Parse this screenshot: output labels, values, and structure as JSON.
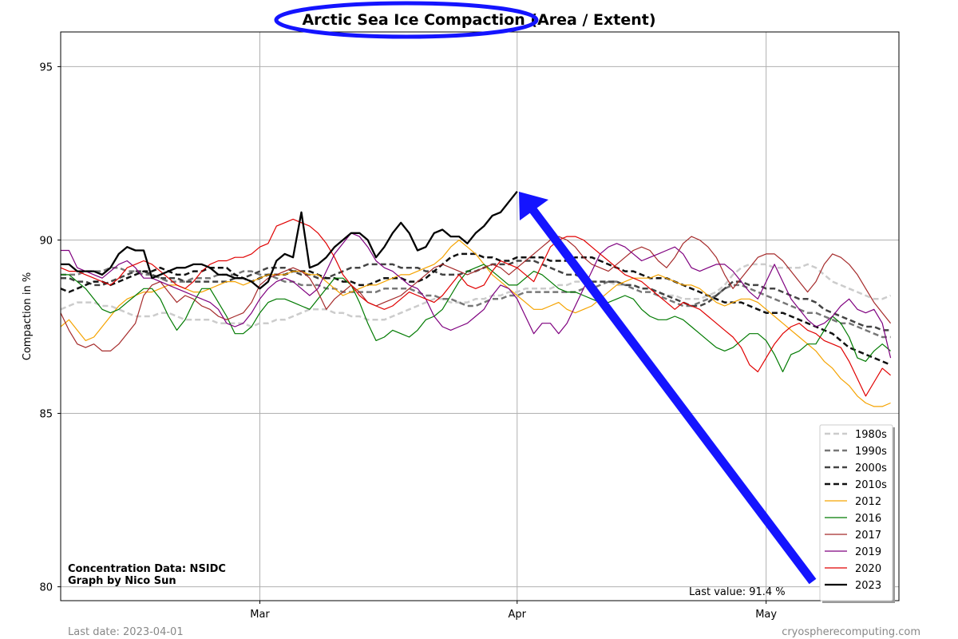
{
  "chart_data": {
    "type": "line",
    "title": "Arctic Sea Ice Compaction (Area / Extent)",
    "ylabel": "Compaction in %",
    "xlabel": "",
    "ylim": [
      79.6,
      96.0
    ],
    "yticks": [
      80,
      85,
      90,
      95
    ],
    "x_start_date": "2023-02-05",
    "x_end_date": "2023-05-17",
    "xticks": [
      {
        "label": "Mar",
        "date": "2023-03-01"
      },
      {
        "label": "Apr",
        "date": "2023-04-01"
      },
      {
        "label": "May",
        "date": "2023-05-01"
      }
    ],
    "grid": true,
    "legend_position": "lower-right",
    "series": [
      {
        "name": "1980s",
        "color": "#cccccc",
        "style": "dashed",
        "width": 2.5,
        "values": [
          88.0,
          88.1,
          88.2,
          88.2,
          88.2,
          88.1,
          88.1,
          88.0,
          87.9,
          87.8,
          87.8,
          87.8,
          87.9,
          87.9,
          87.8,
          87.7,
          87.7,
          87.7,
          87.7,
          87.6,
          87.6,
          87.6,
          87.6,
          87.5,
          87.6,
          87.6,
          87.7,
          87.7,
          87.8,
          87.9,
          88.0,
          88.0,
          88.0,
          87.9,
          87.9,
          87.8,
          87.8,
          87.7,
          87.7,
          87.7,
          87.8,
          87.9,
          88.0,
          88.1,
          88.2,
          88.3,
          88.3,
          88.2,
          88.2,
          88.2,
          88.3,
          88.3,
          88.4,
          88.4,
          88.5,
          88.5,
          88.6,
          88.6,
          88.6,
          88.6,
          88.7,
          88.7,
          88.8,
          88.8,
          88.8,
          88.8,
          88.8,
          88.7,
          88.7,
          88.7,
          88.6,
          88.6,
          88.5,
          88.4,
          88.4,
          88.3,
          88.3,
          88.3,
          88.4,
          88.5,
          88.7,
          89.0,
          89.2,
          89.3,
          89.3,
          89.3,
          89.2,
          89.2,
          89.2,
          89.2,
          89.3,
          89.2,
          89.0,
          88.8,
          88.7,
          88.6,
          88.5,
          88.4,
          88.3,
          88.3,
          88.4
        ]
      },
      {
        "name": "1990s",
        "color": "#777777",
        "style": "dashed",
        "width": 2.5,
        "values": [
          89.0,
          89.0,
          89.0,
          89.1,
          89.1,
          89.1,
          89.2,
          89.2,
          89.1,
          89.1,
          89.0,
          89.0,
          88.9,
          88.8,
          88.8,
          88.8,
          88.9,
          88.9,
          88.9,
          89.0,
          89.0,
          89.0,
          89.1,
          89.1,
          89.0,
          89.0,
          88.9,
          88.8,
          88.8,
          88.7,
          88.7,
          88.7,
          88.6,
          88.6,
          88.5,
          88.5,
          88.5,
          88.5,
          88.5,
          88.6,
          88.6,
          88.6,
          88.6,
          88.5,
          88.4,
          88.4,
          88.3,
          88.3,
          88.2,
          88.1,
          88.1,
          88.2,
          88.3,
          88.3,
          88.4,
          88.4,
          88.5,
          88.5,
          88.5,
          88.5,
          88.5,
          88.5,
          88.5,
          88.6,
          88.6,
          88.7,
          88.8,
          88.8,
          88.7,
          88.6,
          88.5,
          88.5,
          88.4,
          88.3,
          88.2,
          88.1,
          88.1,
          88.2,
          88.3,
          88.4,
          88.6,
          88.7,
          88.7,
          88.6,
          88.5,
          88.4,
          88.3,
          88.2,
          88.1,
          88.0,
          87.9,
          87.9,
          87.8,
          87.7,
          87.6,
          87.6,
          87.5,
          87.4,
          87.3,
          87.2,
          87.2
        ]
      },
      {
        "name": "2000s",
        "color": "#444444",
        "style": "dashed",
        "width": 2.5,
        "values": [
          88.9,
          88.9,
          88.8,
          88.8,
          88.7,
          88.7,
          88.8,
          88.9,
          89.0,
          89.1,
          89.1,
          89.0,
          88.9,
          88.9,
          88.9,
          88.8,
          88.8,
          88.8,
          88.8,
          88.8,
          88.8,
          88.9,
          88.9,
          89.0,
          89.1,
          89.2,
          89.2,
          89.2,
          89.1,
          89.0,
          89.0,
          88.9,
          88.9,
          89.0,
          89.1,
          89.2,
          89.2,
          89.3,
          89.3,
          89.3,
          89.3,
          89.2,
          89.2,
          89.2,
          89.1,
          89.1,
          89.0,
          89.0,
          89.0,
          89.1,
          89.1,
          89.2,
          89.3,
          89.3,
          89.3,
          89.4,
          89.4,
          89.4,
          89.3,
          89.2,
          89.1,
          89.0,
          89.0,
          88.9,
          88.8,
          88.8,
          88.8,
          88.8,
          88.7,
          88.7,
          88.6,
          88.6,
          88.5,
          88.4,
          88.3,
          88.2,
          88.1,
          88.1,
          88.2,
          88.4,
          88.6,
          88.8,
          88.8,
          88.7,
          88.7,
          88.6,
          88.6,
          88.5,
          88.4,
          88.3,
          88.3,
          88.2,
          88.0,
          87.9,
          87.8,
          87.7,
          87.6,
          87.5,
          87.5,
          87.4,
          87.4
        ]
      },
      {
        "name": "2010s",
        "color": "#111111",
        "style": "dashed",
        "width": 2.5,
        "values": [
          88.6,
          88.5,
          88.6,
          88.7,
          88.8,
          88.8,
          88.7,
          88.8,
          88.9,
          89.0,
          89.1,
          89.1,
          89.2,
          89.1,
          89.0,
          89.0,
          89.1,
          89.1,
          89.2,
          89.2,
          89.2,
          89.0,
          88.9,
          88.8,
          88.9,
          89.0,
          89.0,
          89.0,
          89.1,
          89.1,
          89.1,
          89.0,
          88.9,
          88.9,
          88.8,
          88.8,
          88.7,
          88.7,
          88.8,
          88.9,
          88.9,
          88.9,
          88.8,
          88.8,
          88.9,
          89.1,
          89.3,
          89.5,
          89.6,
          89.6,
          89.6,
          89.5,
          89.5,
          89.4,
          89.4,
          89.5,
          89.5,
          89.5,
          89.5,
          89.4,
          89.4,
          89.4,
          89.5,
          89.5,
          89.5,
          89.4,
          89.3,
          89.2,
          89.1,
          89.1,
          89.0,
          88.9,
          88.9,
          88.9,
          88.8,
          88.7,
          88.6,
          88.5,
          88.4,
          88.3,
          88.2,
          88.2,
          88.2,
          88.1,
          88.0,
          87.9,
          87.9,
          87.9,
          87.8,
          87.7,
          87.6,
          87.5,
          87.4,
          87.3,
          87.1,
          86.9,
          86.8,
          86.7,
          86.6,
          86.5,
          86.4
        ]
      },
      {
        "name": "2012",
        "color": "#f5a300",
        "style": "solid",
        "width": 1.2,
        "values": [
          87.5,
          87.7,
          87.4,
          87.1,
          87.2,
          87.5,
          87.8,
          88.1,
          88.3,
          88.4,
          88.5,
          88.5,
          88.6,
          88.7,
          88.7,
          88.6,
          88.5,
          88.5,
          88.6,
          88.7,
          88.8,
          88.8,
          88.7,
          88.8,
          88.9,
          89.0,
          89.0,
          89.0,
          89.1,
          89.1,
          89.0,
          89.0,
          88.8,
          88.6,
          88.4,
          88.5,
          88.6,
          88.7,
          88.7,
          88.8,
          88.9,
          89.0,
          89.0,
          89.1,
          89.2,
          89.3,
          89.5,
          89.8,
          90.0,
          89.8,
          89.6,
          89.3,
          89.0,
          88.8,
          88.6,
          88.4,
          88.2,
          88.0,
          88.0,
          88.1,
          88.2,
          88.0,
          87.9,
          88.0,
          88.1,
          88.3,
          88.5,
          88.7,
          88.8,
          88.9,
          88.9,
          88.9,
          89.0,
          88.9,
          88.8,
          88.7,
          88.7,
          88.6,
          88.4,
          88.2,
          88.1,
          88.2,
          88.3,
          88.3,
          88.2,
          88.0,
          87.8,
          87.6,
          87.4,
          87.2,
          87.0,
          86.8,
          86.5,
          86.3,
          86.0,
          85.8,
          85.5,
          85.3,
          85.2,
          85.2,
          85.3
        ]
      },
      {
        "name": "2016",
        "color": "#007a00",
        "style": "solid",
        "width": 1.2,
        "values": [
          89.0,
          89.0,
          88.8,
          88.6,
          88.3,
          88.0,
          87.9,
          88.0,
          88.2,
          88.4,
          88.6,
          88.6,
          88.3,
          87.8,
          87.4,
          87.7,
          88.2,
          88.6,
          88.6,
          88.2,
          87.8,
          87.3,
          87.3,
          87.5,
          87.9,
          88.2,
          88.3,
          88.3,
          88.2,
          88.1,
          88.0,
          88.3,
          88.6,
          88.9,
          88.9,
          88.7,
          88.2,
          87.6,
          87.1,
          87.2,
          87.4,
          87.3,
          87.2,
          87.4,
          87.7,
          87.8,
          88.0,
          88.4,
          88.8,
          89.1,
          89.2,
          89.3,
          89.1,
          88.9,
          88.7,
          88.7,
          88.9,
          89.1,
          89.0,
          88.8,
          88.6,
          88.5,
          88.5,
          88.4,
          88.3,
          88.2,
          88.2,
          88.3,
          88.4,
          88.3,
          88.0,
          87.8,
          87.7,
          87.7,
          87.8,
          87.7,
          87.5,
          87.3,
          87.1,
          86.9,
          86.8,
          86.9,
          87.1,
          87.3,
          87.3,
          87.1,
          86.7,
          86.2,
          86.7,
          86.8,
          87.0,
          87.0,
          87.4,
          87.8,
          87.6,
          87.2,
          86.6,
          86.5,
          86.8,
          87.0,
          86.8
        ]
      },
      {
        "name": "2017",
        "color": "#a52a2a",
        "style": "solid",
        "width": 1.2,
        "values": [
          87.9,
          87.4,
          87.0,
          86.9,
          87.0,
          86.8,
          86.8,
          87.0,
          87.3,
          87.6,
          88.4,
          88.7,
          88.8,
          88.5,
          88.2,
          88.4,
          88.3,
          88.1,
          88.0,
          87.8,
          87.7,
          87.8,
          87.9,
          88.2,
          88.7,
          88.9,
          89.0,
          89.1,
          89.2,
          89.1,
          88.9,
          88.5,
          88.0,
          88.3,
          88.5,
          88.7,
          88.5,
          88.2,
          88.1,
          88.2,
          88.3,
          88.4,
          88.6,
          88.8,
          89.0,
          89.2,
          89.3,
          89.2,
          89.1,
          89.0,
          89.1,
          89.2,
          89.3,
          89.2,
          89.0,
          89.2,
          89.4,
          89.6,
          89.8,
          90.0,
          90.1,
          90.0,
          89.8,
          89.5,
          89.3,
          89.2,
          89.1,
          89.3,
          89.5,
          89.7,
          89.8,
          89.7,
          89.4,
          89.2,
          89.5,
          89.9,
          90.1,
          90.0,
          89.8,
          89.5,
          89.0,
          88.6,
          88.9,
          89.2,
          89.5,
          89.6,
          89.6,
          89.4,
          89.1,
          88.8,
          88.5,
          88.8,
          89.3,
          89.6,
          89.5,
          89.3,
          89.0,
          88.6,
          88.2,
          87.9,
          87.6
        ]
      },
      {
        "name": "2019",
        "color": "#7f007f",
        "style": "solid",
        "width": 1.2,
        "values": [
          89.7,
          89.7,
          89.2,
          89.1,
          89.0,
          88.9,
          89.1,
          89.3,
          89.4,
          89.2,
          88.9,
          88.9,
          88.8,
          88.7,
          88.6,
          88.5,
          88.4,
          88.3,
          88.2,
          88.0,
          87.6,
          87.5,
          87.6,
          87.9,
          88.3,
          88.6,
          88.8,
          88.9,
          88.8,
          88.6,
          88.4,
          88.6,
          89.1,
          89.6,
          89.9,
          90.2,
          90.1,
          89.8,
          89.4,
          89.2,
          89.1,
          88.9,
          88.7,
          88.6,
          88.3,
          87.8,
          87.5,
          87.4,
          87.5,
          87.6,
          87.8,
          88.0,
          88.4,
          88.7,
          88.6,
          88.3,
          87.8,
          87.3,
          87.6,
          87.6,
          87.3,
          87.6,
          88.1,
          88.6,
          89.1,
          89.6,
          89.8,
          89.9,
          89.8,
          89.6,
          89.4,
          89.5,
          89.6,
          89.7,
          89.8,
          89.6,
          89.2,
          89.1,
          89.2,
          89.3,
          89.3,
          89.1,
          88.8,
          88.5,
          88.3,
          88.8,
          89.3,
          88.8,
          88.3,
          88.0,
          87.7,
          87.5,
          87.6,
          87.8,
          88.1,
          88.3,
          88.0,
          87.9,
          88.0,
          87.6,
          86.6
        ]
      },
      {
        "name": "2020",
        "color": "#e00000",
        "style": "solid",
        "width": 1.2,
        "values": [
          89.2,
          89.1,
          89.1,
          89.0,
          88.9,
          88.8,
          88.7,
          88.9,
          89.2,
          89.3,
          89.4,
          89.3,
          89.1,
          88.9,
          88.7,
          88.6,
          88.8,
          89.1,
          89.3,
          89.4,
          89.4,
          89.5,
          89.5,
          89.6,
          89.8,
          89.9,
          90.4,
          90.5,
          90.6,
          90.5,
          90.4,
          90.2,
          89.9,
          89.5,
          89.0,
          88.7,
          88.4,
          88.2,
          88.1,
          88.0,
          88.1,
          88.3,
          88.5,
          88.4,
          88.3,
          88.2,
          88.4,
          88.7,
          89.0,
          88.7,
          88.6,
          88.7,
          89.1,
          89.4,
          89.3,
          89.2,
          89.0,
          88.8,
          89.3,
          89.8,
          90.0,
          90.1,
          90.1,
          90.0,
          89.8,
          89.6,
          89.4,
          89.2,
          89.0,
          88.9,
          88.8,
          88.6,
          88.4,
          88.2,
          88.0,
          88.2,
          88.1,
          88.0,
          87.8,
          87.6,
          87.4,
          87.2,
          86.9,
          86.4,
          86.2,
          86.6,
          87.0,
          87.3,
          87.5,
          87.6,
          87.4,
          87.3,
          87.1,
          87.0,
          86.9,
          86.5,
          86.0,
          85.5,
          85.9,
          86.3,
          86.1
        ]
      },
      {
        "name": "2023",
        "color": "#000000",
        "style": "solid",
        "width": 2.3,
        "values": [
          89.3,
          89.3,
          89.1,
          89.1,
          89.1,
          89.0,
          89.2,
          89.6,
          89.8,
          89.7,
          89.7,
          88.9,
          89.0,
          89.1,
          89.2,
          89.2,
          89.3,
          89.3,
          89.2,
          89.0,
          89.0,
          88.9,
          88.9,
          88.8,
          88.6,
          88.8,
          89.4,
          89.6,
          89.5,
          90.8,
          89.2,
          89.3,
          89.5,
          89.8,
          90.0,
          90.2,
          90.2,
          90.0,
          89.5,
          89.8,
          90.2,
          90.5,
          90.2,
          89.7,
          89.8,
          90.2,
          90.3,
          90.1,
          90.1,
          89.9,
          90.2,
          90.4,
          90.7,
          90.8,
          91.1,
          91.4
        ]
      }
    ]
  },
  "credit_line1": "Concentration Data: NSIDC",
  "credit_line2": "Graph by Nico Sun",
  "last_value_text": "Last value: 91.4 %",
  "footer_left": "Last date: 2023-04-01",
  "footer_right": "cryospherecomputing.com",
  "annotation_color": "#1414ff"
}
